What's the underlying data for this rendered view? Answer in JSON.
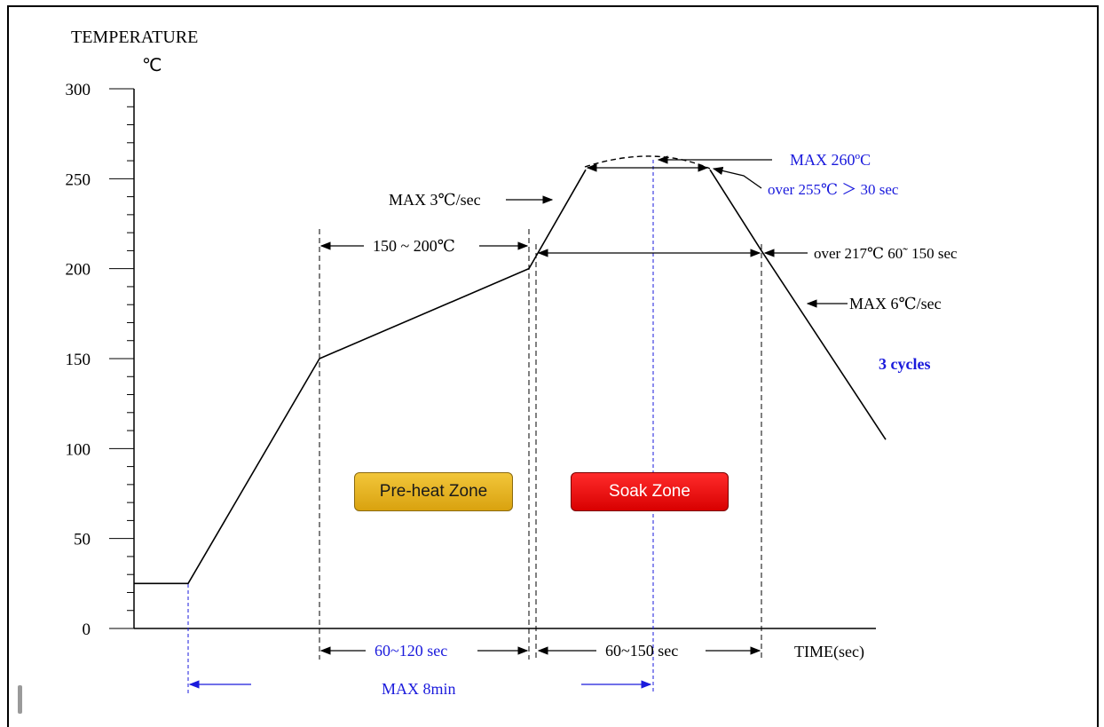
{
  "chart_data": {
    "type": "line",
    "title": "",
    "ylabel": "TEMPERATURE",
    "yunit": "℃",
    "xlabel": "TIME(sec)",
    "ylim": [
      0,
      300
    ],
    "yticks": [
      0,
      50,
      100,
      150,
      200,
      250,
      300
    ],
    "grid": false,
    "series": [
      {
        "name": "",
        "points": [
          {
            "x": 0,
            "y": 25
          },
          {
            "x": 1,
            "y": 25
          },
          {
            "x": 2,
            "y": 150
          },
          {
            "x": 3,
            "y": 200
          },
          {
            "x": 4,
            "y": 255
          },
          {
            "x": 5,
            "y": 260
          },
          {
            "x": 6,
            "y": 255
          },
          {
            "x": 7,
            "y": 210
          },
          {
            "x": 8,
            "y": 105
          }
        ]
      }
    ]
  },
  "annotations": {
    "max_peak": "MAX 260ºC",
    "over_255": "over 255℃ ＞ 30 sec",
    "max_ramp_up": "MAX  3℃/sec",
    "preheat_range": "150 ~ 200℃",
    "over_217": "over 217℃ 60˜ 150 sec",
    "max_ramp_down": "MAX  6℃/sec",
    "cycles": "3 cycles",
    "preheat_time": "60~120 sec",
    "soak_time": "60~150 sec",
    "max_total": "MAX 8min"
  },
  "zones": {
    "preheat": "Pre-heat Zone",
    "soak": "Soak Zone"
  },
  "colors": {
    "annotation_blue": "#1a1adc",
    "line": "#000000",
    "preheat_zone": "#e6b21f",
    "soak_zone": "#ee1111"
  }
}
